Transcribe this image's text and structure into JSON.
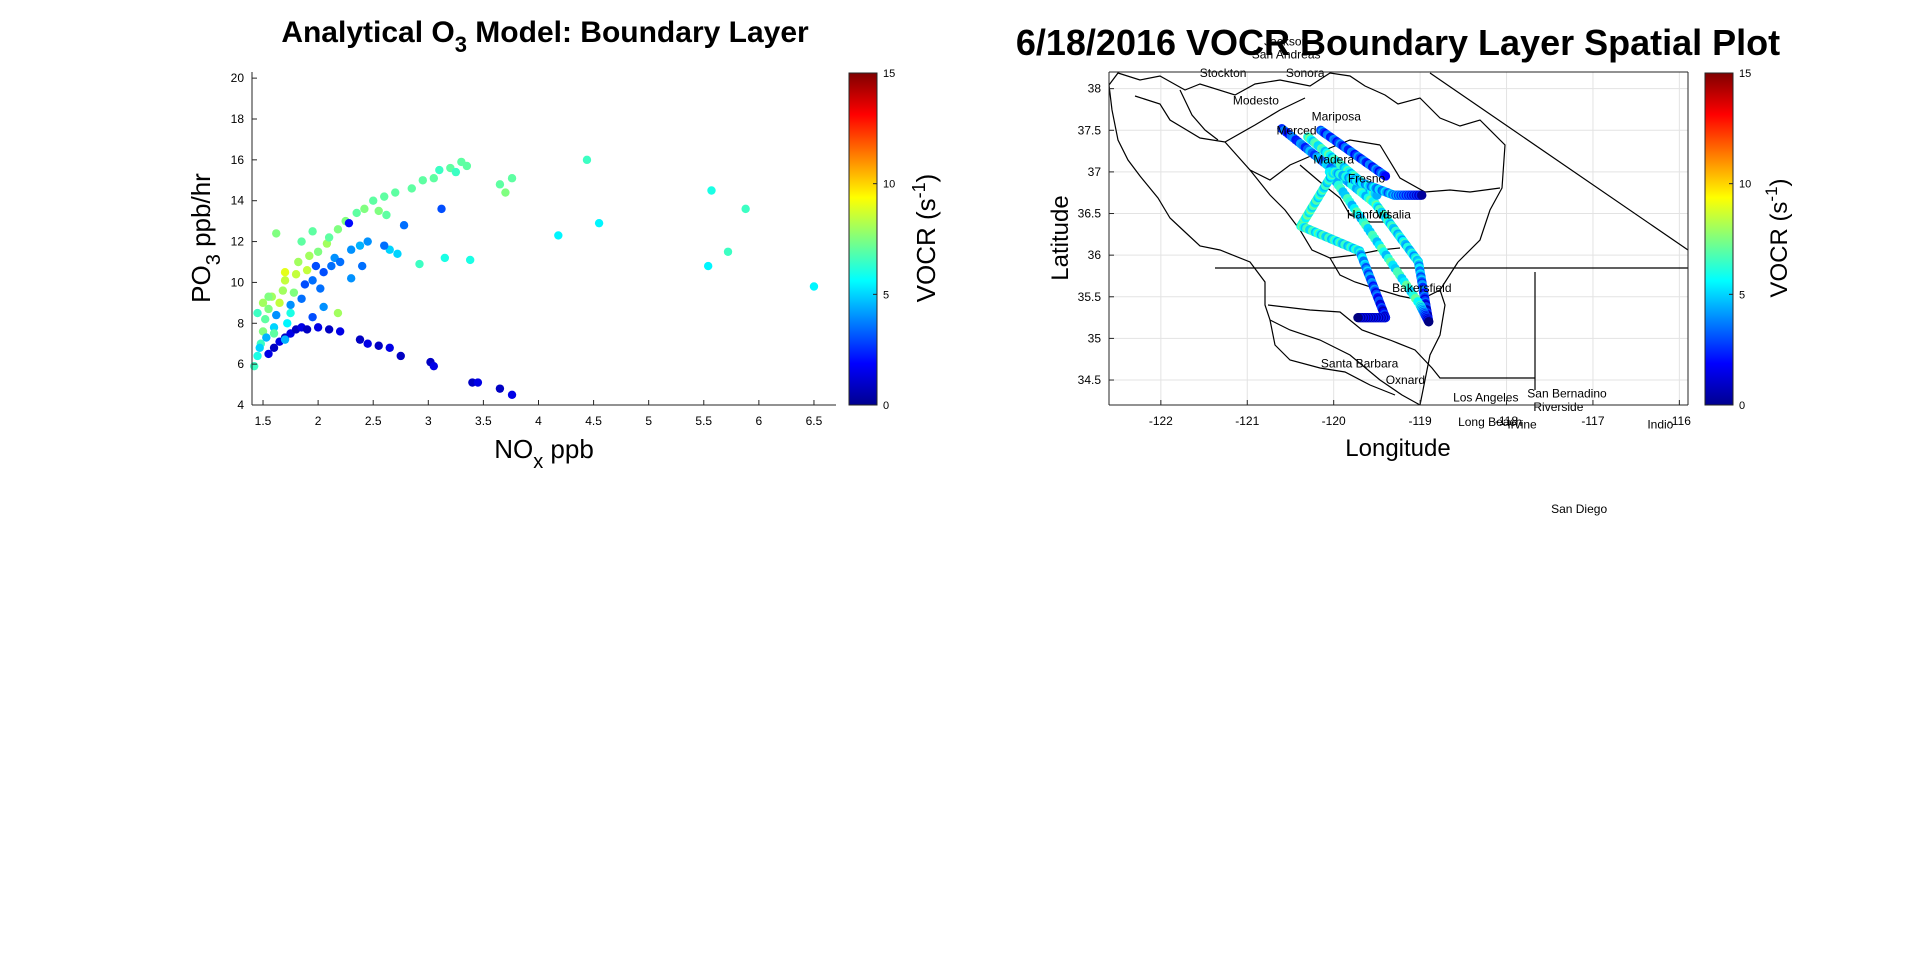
{
  "figure": {
    "background": "#ffffff"
  },
  "chart_data": [
    {
      "type": "scatter",
      "title_main": "Analytical O",
      "title_sub": "3",
      "title_rest": " Model: Boundary Layer",
      "xlabel_main": "NO",
      "xlabel_sub": "x",
      "xlabel_rest": " ppb",
      "ylabel_main": "PO",
      "ylabel_sub": "3",
      "ylabel_rest": " ppb/hr",
      "xlim": [
        1.4,
        6.7
      ],
      "ylim": [
        4,
        20.3
      ],
      "xticks": [
        1.5,
        2,
        2.5,
        3,
        3.5,
        4,
        4.5,
        5,
        5.5,
        6,
        6.5
      ],
      "xtick_labels": [
        "1.5",
        "2",
        "2.5",
        "3",
        "3.5",
        "4",
        "4.5",
        "5",
        "5.5",
        "6",
        "6.5"
      ],
      "yticks": [
        4,
        6,
        8,
        10,
        12,
        14,
        16,
        18,
        20
      ],
      "ytick_labels": [
        "4",
        "6",
        "8",
        "10",
        "12",
        "14",
        "16",
        "18",
        "20"
      ],
      "grid": false,
      "colorbar": {
        "label_main": "VOCR (s",
        "label_sup": "-1",
        "label_rest": ")",
        "range": [
          0,
          15
        ],
        "ticks": [
          0,
          5,
          10,
          15
        ],
        "tick_labels": [
          "0",
          "5",
          "10",
          "15"
        ],
        "colormap": "jet"
      },
      "points": [
        {
          "x": 1.42,
          "y": 5.9,
          "c": 6.5
        },
        {
          "x": 1.45,
          "y": 6.4,
          "c": 6
        },
        {
          "x": 1.48,
          "y": 7.0,
          "c": 6.5
        },
        {
          "x": 1.5,
          "y": 7.6,
          "c": 7.5
        },
        {
          "x": 1.52,
          "y": 8.2,
          "c": 7
        },
        {
          "x": 1.55,
          "y": 8.7,
          "c": 7.5
        },
        {
          "x": 1.58,
          "y": 9.3,
          "c": 8
        },
        {
          "x": 1.47,
          "y": 6.8,
          "c": 5
        },
        {
          "x": 1.53,
          "y": 7.3,
          "c": 4.5
        },
        {
          "x": 1.6,
          "y": 7.8,
          "c": 5
        },
        {
          "x": 1.62,
          "y": 8.4,
          "c": 4
        },
        {
          "x": 1.65,
          "y": 9.0,
          "c": 8.5
        },
        {
          "x": 1.68,
          "y": 9.6,
          "c": 8
        },
        {
          "x": 1.7,
          "y": 10.1,
          "c": 8.5
        },
        {
          "x": 1.72,
          "y": 8.0,
          "c": 5.5
        },
        {
          "x": 1.75,
          "y": 8.9,
          "c": 4
        },
        {
          "x": 1.78,
          "y": 9.5,
          "c": 7.5
        },
        {
          "x": 1.8,
          "y": 10.4,
          "c": 8.5
        },
        {
          "x": 1.82,
          "y": 11.0,
          "c": 8
        },
        {
          "x": 1.85,
          "y": 9.2,
          "c": 3.5
        },
        {
          "x": 1.88,
          "y": 9.9,
          "c": 3
        },
        {
          "x": 1.9,
          "y": 10.6,
          "c": 8.5
        },
        {
          "x": 1.92,
          "y": 11.3,
          "c": 8
        },
        {
          "x": 1.95,
          "y": 10.1,
          "c": 3.5
        },
        {
          "x": 1.98,
          "y": 10.8,
          "c": 3
        },
        {
          "x": 2.0,
          "y": 11.5,
          "c": 7.5
        },
        {
          "x": 2.02,
          "y": 9.7,
          "c": 3.5
        },
        {
          "x": 2.05,
          "y": 10.5,
          "c": 3
        },
        {
          "x": 2.08,
          "y": 11.9,
          "c": 8
        },
        {
          "x": 2.1,
          "y": 12.2,
          "c": 7
        },
        {
          "x": 2.12,
          "y": 10.8,
          "c": 3.5
        },
        {
          "x": 2.15,
          "y": 11.2,
          "c": 4
        },
        {
          "x": 2.18,
          "y": 12.6,
          "c": 7.5
        },
        {
          "x": 2.2,
          "y": 11.0,
          "c": 3.5
        },
        {
          "x": 2.25,
          "y": 13.0,
          "c": 7.5
        },
        {
          "x": 2.28,
          "y": 12.9,
          "c": 2
        },
        {
          "x": 2.3,
          "y": 11.6,
          "c": 4
        },
        {
          "x": 2.35,
          "y": 13.4,
          "c": 7
        },
        {
          "x": 2.38,
          "y": 11.8,
          "c": 4.5
        },
        {
          "x": 2.42,
          "y": 13.6,
          "c": 7.5
        },
        {
          "x": 2.45,
          "y": 12.0,
          "c": 4
        },
        {
          "x": 2.5,
          "y": 14.0,
          "c": 7
        },
        {
          "x": 2.55,
          "y": 13.5,
          "c": 7.5
        },
        {
          "x": 2.6,
          "y": 14.2,
          "c": 7
        },
        {
          "x": 2.62,
          "y": 13.3,
          "c": 7
        },
        {
          "x": 2.65,
          "y": 11.6,
          "c": 5
        },
        {
          "x": 2.7,
          "y": 14.4,
          "c": 7
        },
        {
          "x": 2.72,
          "y": 11.4,
          "c": 5
        },
        {
          "x": 2.78,
          "y": 12.8,
          "c": 3.5
        },
        {
          "x": 2.85,
          "y": 14.6,
          "c": 7
        },
        {
          "x": 2.92,
          "y": 10.9,
          "c": 6.5
        },
        {
          "x": 2.95,
          "y": 15.0,
          "c": 7
        },
        {
          "x": 3.05,
          "y": 15.1,
          "c": 7
        },
        {
          "x": 3.1,
          "y": 15.5,
          "c": 6.5
        },
        {
          "x": 3.12,
          "y": 13.6,
          "c": 3
        },
        {
          "x": 3.15,
          "y": 11.2,
          "c": 6
        },
        {
          "x": 3.2,
          "y": 15.6,
          "c": 7
        },
        {
          "x": 3.25,
          "y": 15.4,
          "c": 6.5
        },
        {
          "x": 3.3,
          "y": 15.9,
          "c": 7
        },
        {
          "x": 3.35,
          "y": 15.7,
          "c": 7
        },
        {
          "x": 3.38,
          "y": 11.1,
          "c": 6
        },
        {
          "x": 3.65,
          "y": 14.8,
          "c": 7
        },
        {
          "x": 3.7,
          "y": 14.4,
          "c": 7.5
        },
        {
          "x": 3.76,
          "y": 15.1,
          "c": 7
        },
        {
          "x": 4.18,
          "y": 12.3,
          "c": 5.5
        },
        {
          "x": 4.44,
          "y": 16.0,
          "c": 6.5
        },
        {
          "x": 4.55,
          "y": 12.9,
          "c": 5.5
        },
        {
          "x": 5.54,
          "y": 10.8,
          "c": 5.5
        },
        {
          "x": 5.57,
          "y": 14.5,
          "c": 6
        },
        {
          "x": 5.72,
          "y": 11.5,
          "c": 6.5
        },
        {
          "x": 5.88,
          "y": 13.6,
          "c": 6.5
        },
        {
          "x": 6.5,
          "y": 9.8,
          "c": 5.5
        },
        {
          "x": 1.55,
          "y": 6.5,
          "c": 1.5
        },
        {
          "x": 1.6,
          "y": 6.8,
          "c": 1
        },
        {
          "x": 1.65,
          "y": 7.1,
          "c": 1.5
        },
        {
          "x": 1.7,
          "y": 7.3,
          "c": 1
        },
        {
          "x": 1.75,
          "y": 7.5,
          "c": 1.5
        },
        {
          "x": 1.8,
          "y": 7.7,
          "c": 1
        },
        {
          "x": 1.85,
          "y": 7.8,
          "c": 1.5
        },
        {
          "x": 1.9,
          "y": 7.7,
          "c": 1
        },
        {
          "x": 2.0,
          "y": 7.8,
          "c": 1.5
        },
        {
          "x": 2.1,
          "y": 7.7,
          "c": 1
        },
        {
          "x": 2.2,
          "y": 7.6,
          "c": 1.5
        },
        {
          "x": 2.38,
          "y": 7.2,
          "c": 1
        },
        {
          "x": 2.45,
          "y": 7.0,
          "c": 1.5
        },
        {
          "x": 2.55,
          "y": 6.9,
          "c": 1
        },
        {
          "x": 2.65,
          "y": 6.8,
          "c": 1.5
        },
        {
          "x": 2.75,
          "y": 6.4,
          "c": 1
        },
        {
          "x": 3.02,
          "y": 6.1,
          "c": 1
        },
        {
          "x": 3.05,
          "y": 5.9,
          "c": 1.5
        },
        {
          "x": 3.4,
          "y": 5.1,
          "c": 1
        },
        {
          "x": 3.45,
          "y": 5.1,
          "c": 1.5
        },
        {
          "x": 3.65,
          "y": 4.8,
          "c": 1
        },
        {
          "x": 3.76,
          "y": 4.5,
          "c": 1.5
        },
        {
          "x": 1.45,
          "y": 8.5,
          "c": 6.5
        },
        {
          "x": 1.5,
          "y": 9.0,
          "c": 8
        },
        {
          "x": 1.55,
          "y": 9.3,
          "c": 7.5
        },
        {
          "x": 1.62,
          "y": 12.4,
          "c": 7.5
        },
        {
          "x": 1.7,
          "y": 10.5,
          "c": 9
        },
        {
          "x": 1.85,
          "y": 12.0,
          "c": 7
        },
        {
          "x": 1.95,
          "y": 12.5,
          "c": 7
        },
        {
          "x": 2.18,
          "y": 8.5,
          "c": 8
        },
        {
          "x": 2.05,
          "y": 8.8,
          "c": 4
        },
        {
          "x": 1.95,
          "y": 8.3,
          "c": 3
        },
        {
          "x": 1.7,
          "y": 7.2,
          "c": 4.5
        },
        {
          "x": 1.6,
          "y": 7.5,
          "c": 7
        },
        {
          "x": 1.75,
          "y": 8.5,
          "c": 6
        },
        {
          "x": 2.3,
          "y": 10.2,
          "c": 4
        },
        {
          "x": 2.4,
          "y": 10.8,
          "c": 3.5
        },
        {
          "x": 2.6,
          "y": 11.8,
          "c": 3.5
        }
      ]
    },
    {
      "type": "scatter",
      "title": "6/18/2016 VOCR Boundary Layer Spatial Plot",
      "xlabel": "Longitude",
      "ylabel": "Latitude",
      "xlim": [
        -122.6,
        -115.9
      ],
      "ylim": [
        34.2,
        38.2
      ],
      "xticks": [
        -122,
        -121,
        -120,
        -119,
        -118,
        -117,
        -116
      ],
      "xtick_labels": [
        "-122",
        "-121",
        "-120",
        "-119",
        "-118",
        "-117",
        "-116"
      ],
      "yticks": [
        34.5,
        35,
        35.5,
        36,
        36.5,
        37,
        37.5,
        38
      ],
      "ytick_labels": [
        "34.5",
        "35",
        "35.5",
        "36",
        "36.5",
        "37",
        "37.5",
        "38"
      ],
      "grid": true,
      "colorbar": {
        "label_main": "VOCR (s",
        "label_sup": "-1",
        "label_rest": ")",
        "range": [
          0,
          15
        ],
        "ticks": [
          0,
          5,
          10,
          15
        ],
        "tick_labels": [
          "0",
          "5",
          "10",
          "15"
        ],
        "colormap": "jet"
      },
      "city_labels": [
        {
          "name": "Jackson",
          "lon": -120.55,
          "lat": 38.52
        },
        {
          "name": "San Andreas",
          "lon": -120.55,
          "lat": 38.36
        },
        {
          "name": "Stockton",
          "lon": -121.28,
          "lat": 38.14
        },
        {
          "name": "Sonora",
          "lon": -120.33,
          "lat": 38.14
        },
        {
          "name": "Modesto",
          "lon": -120.9,
          "lat": 37.81
        },
        {
          "name": "Mariposa",
          "lon": -119.97,
          "lat": 37.62
        },
        {
          "name": "Merced",
          "lon": -120.43,
          "lat": 37.45
        },
        {
          "name": "Madera",
          "lon": -120.0,
          "lat": 37.1
        },
        {
          "name": "Fresno",
          "lon": -119.62,
          "lat": 36.87
        },
        {
          "name": "Hanford",
          "lon": -119.6,
          "lat": 36.44
        },
        {
          "name": "Visalia",
          "lon": -119.31,
          "lat": 36.44
        },
        {
          "name": "Bakersfield",
          "lon": -118.98,
          "lat": 35.56
        },
        {
          "name": "Santa Barbara",
          "lon": -119.7,
          "lat": 34.65
        },
        {
          "name": "Oxnard",
          "lon": -119.17,
          "lat": 34.45
        },
        {
          "name": "Los Angeles",
          "lon": -118.24,
          "lat": 34.24
        },
        {
          "name": "Long Beach",
          "lon": -118.19,
          "lat": 33.95
        },
        {
          "name": "Irvine",
          "lon": -117.82,
          "lat": 33.92
        },
        {
          "name": "San Bernadino",
          "lon": -117.3,
          "lat": 34.29
        },
        {
          "name": "Riverside",
          "lon": -117.4,
          "lat": 34.13
        },
        {
          "name": "Indio",
          "lon": -116.22,
          "lat": 33.92
        },
        {
          "name": "San Diego",
          "lon": -117.16,
          "lat": 32.9
        }
      ],
      "flight_tracks": [
        {
          "from": [
            -120.6,
            37.52
          ],
          "to": [
            -119.52,
            36.62
          ],
          "c": [
            2.5,
            6
          ]
        },
        {
          "from": [
            -119.52,
            36.62
          ],
          "to": [
            -119.02,
            35.92
          ],
          "c": [
            6,
            5
          ]
        },
        {
          "from": [
            -119.02,
            35.92
          ],
          "to": [
            -118.9,
            35.2
          ],
          "c": [
            5,
            1
          ]
        },
        {
          "from": [
            -120.3,
            37.42
          ],
          "to": [
            -119.5,
            36.72
          ],
          "c": [
            6,
            5.5
          ]
        },
        {
          "from": [
            -120.05,
            37.0
          ],
          "to": [
            -119.0,
            35.4
          ],
          "c": [
            5.5,
            6
          ]
        },
        {
          "from": [
            -119.0,
            35.4
          ],
          "to": [
            -118.9,
            35.2
          ],
          "c": [
            6,
            1
          ]
        },
        {
          "from": [
            -120.38,
            36.35
          ],
          "to": [
            -120.0,
            37.0
          ],
          "c": [
            6.5,
            5.5
          ]
        },
        {
          "from": [
            -120.38,
            36.35
          ],
          "to": [
            -119.7,
            36.05
          ],
          "c": [
            6,
            5.5
          ]
        },
        {
          "from": [
            -119.7,
            36.05
          ],
          "to": [
            -119.4,
            35.25
          ],
          "c": [
            5,
            1.5
          ]
        },
        {
          "from": [
            -119.4,
            35.25
          ],
          "to": [
            -119.72,
            35.25
          ],
          "c": [
            1.5,
            1
          ]
        },
        {
          "from": [
            -120.0,
            37.0
          ],
          "to": [
            -119.3,
            36.72
          ],
          "c": [
            5.5,
            4
          ]
        },
        {
          "from": [
            -119.3,
            36.72
          ],
          "to": [
            -118.98,
            36.72
          ],
          "c": [
            4,
            1.5
          ]
        },
        {
          "from": [
            -120.15,
            37.5
          ],
          "to": [
            -119.4,
            36.95
          ],
          "c": [
            3,
            3
          ]
        }
      ]
    }
  ]
}
